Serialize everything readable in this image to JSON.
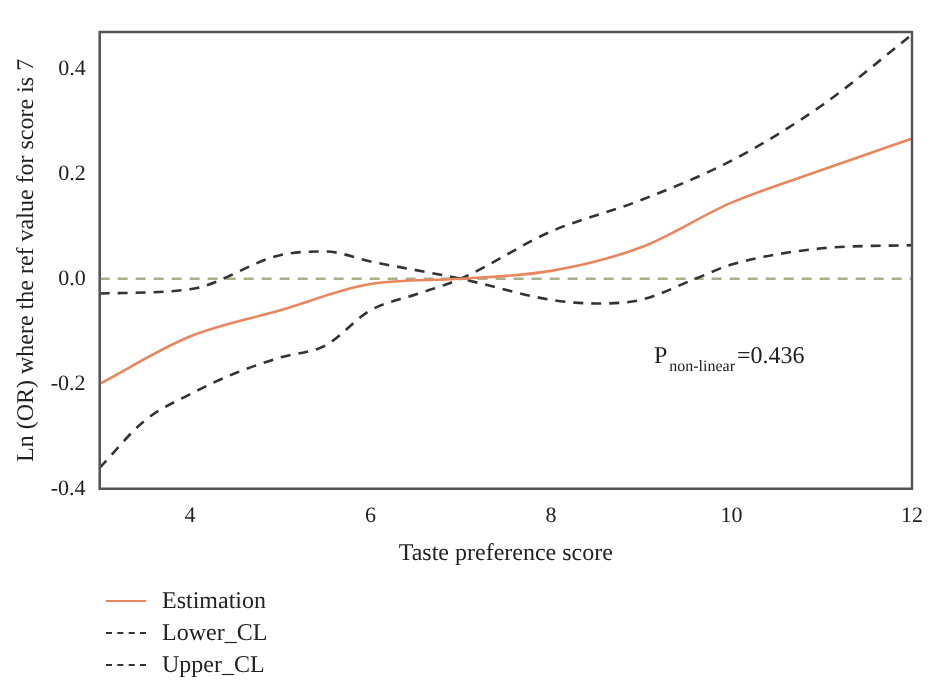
{
  "chart_data": {
    "type": "line",
    "xlabel": "Taste preference score",
    "ylabel": "Ln (OR) where the ref value for score is 7",
    "xlim": [
      3,
      12
    ],
    "xticks": [
      4,
      6,
      8,
      10,
      12
    ],
    "ylim": [
      -0.4,
      0.47
    ],
    "yticks": [
      -0.4,
      -0.2,
      {
        "value": 0,
        "label": "0.0"
      },
      0.2,
      0.4
    ],
    "legend": "bottom left",
    "marker": "none",
    "series": [
      {
        "name": "Estimation",
        "color": "#e8875e",
        "line_style": "solid",
        "x": [
          3,
          4,
          5,
          6,
          7,
          8,
          9,
          10,
          11,
          12
        ],
        "values": [
          -0.2,
          -0.11,
          -0.06,
          -0.01,
          0,
          0.015,
          0.06,
          0.145,
          0.207,
          0.267
        ]
      },
      {
        "name": "Lower_CL",
        "color": "#333333",
        "line_style": "dashed",
        "x": [
          3,
          4,
          5,
          5.5,
          6,
          7,
          8,
          8.5,
          9,
          9.6,
          10,
          11,
          12
        ],
        "values": [
          -0.028,
          -0.02,
          0.045,
          0.052,
          0.033,
          0,
          -0.04,
          -0.047,
          -0.04,
          0,
          0.027,
          0.058,
          0.064
        ]
      },
      {
        "name": "Upper_CL",
        "color": "#333333",
        "line_style": "dashed",
        "x": [
          3,
          3.5,
          4,
          4.5,
          5,
          5.5,
          6,
          6.5,
          7,
          8,
          9,
          10,
          11,
          12
        ],
        "values": [
          -0.36,
          -0.27,
          -0.22,
          -0.18,
          -0.15,
          -0.127,
          -0.06,
          -0.03,
          0,
          0.09,
          0.15,
          0.225,
          0.33,
          0.465
        ]
      }
    ],
    "ref_lines": [
      {
        "axis": "y",
        "value": 0,
        "color": "#a9b08c",
        "line_style": "dashed"
      }
    ],
    "annotations": [
      "P$_{non-linear}$=0.436"
    ]
  }
}
